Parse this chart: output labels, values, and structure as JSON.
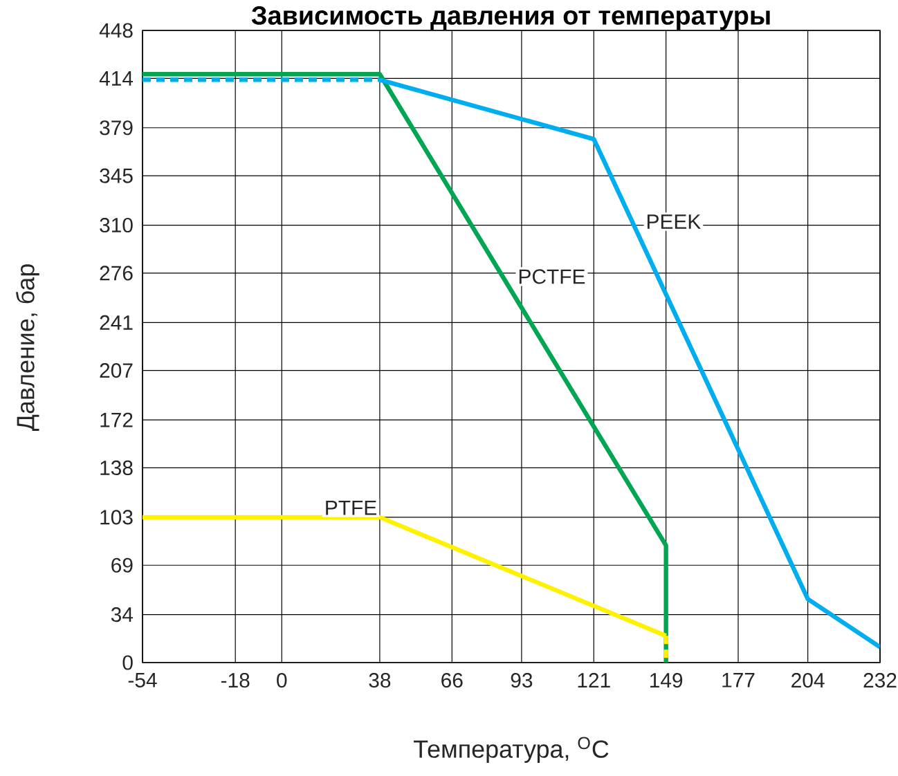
{
  "chart_data": {
    "type": "line",
    "title": "Зависимость давления от температуры",
    "xlabel": "Температура, $^{O}$C",
    "ylabel": "Давление, бар",
    "xlim": [
      -54,
      232
    ],
    "xticks": [
      -54,
      -18,
      0,
      38,
      66,
      93,
      121,
      149,
      177,
      204,
      232
    ],
    "ylim": [
      0,
      448
    ],
    "yticks": [
      0,
      34,
      69,
      103,
      138,
      172,
      207,
      241,
      276,
      310,
      345,
      379,
      414,
      448
    ],
    "grid": true,
    "marker": "none",
    "line_style": "solid",
    "series": [
      {
        "name": "PCTFE",
        "color": "#00a651",
        "x": [
          -54,
          38,
          149,
          149
        ],
        "values": [
          417,
          417,
          83,
          0
        ]
      },
      {
        "color": "#00aeef",
        "line_style": "dashed",
        "x": [
          -54,
          38
        ],
        "values": [
          413,
          413
        ]
      },
      {
        "name": "PEEK",
        "color": "#00aeef",
        "x": [
          38,
          121,
          204,
          232
        ],
        "values": [
          413,
          371,
          45,
          11
        ]
      },
      {
        "name": "PTFE",
        "color": "#fff200",
        "x": [
          -54,
          38,
          149
        ],
        "values": [
          103,
          103,
          19
        ]
      },
      {
        "color": "#fff200",
        "line_style": "dashed",
        "x": [
          149,
          149
        ],
        "values": [
          19,
          0
        ]
      }
    ]
  }
}
